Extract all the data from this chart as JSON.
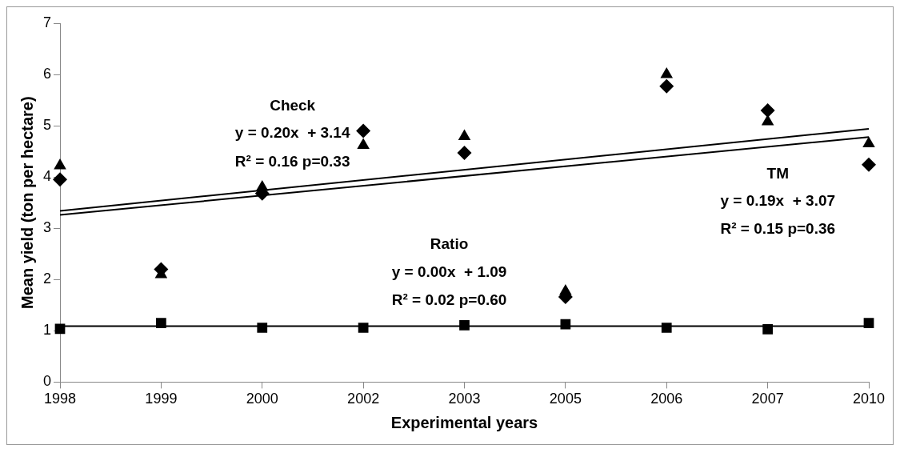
{
  "chart_data": {
    "type": "scatter",
    "xlabel": "Experimental years",
    "ylabel": "Mean yield (ton per hectare)",
    "categories": [
      "1998",
      "1999",
      "2000",
      "2002",
      "2003",
      "2005",
      "2006",
      "2007",
      "2010"
    ],
    "series": [
      {
        "type": "scatter",
        "marker": "diamond",
        "color": "#000000",
        "values": [
          3.95,
          2.2,
          3.68,
          4.9,
          4.47,
          1.66,
          5.77,
          5.3,
          4.24
        ]
      },
      {
        "type": "scatter",
        "marker": "triangle",
        "color": "#000000",
        "values": [
          4.22,
          2.1,
          3.8,
          4.62,
          4.79,
          1.77,
          6.0,
          5.08,
          4.65
        ]
      },
      {
        "type": "scatter",
        "marker": "square",
        "color": "#000000",
        "values": [
          1.04,
          1.15,
          1.06,
          1.06,
          1.11,
          1.13,
          1.06,
          1.03,
          1.15
        ]
      },
      {
        "type": "line",
        "marker": "none",
        "color": "#000000",
        "values": [
          3.34,
          null,
          null,
          null,
          null,
          null,
          null,
          null,
          4.94
        ]
      },
      {
        "type": "line",
        "marker": "none",
        "color": "#000000",
        "values": [
          3.26,
          null,
          null,
          null,
          null,
          null,
          null,
          null,
          4.78
        ]
      },
      {
        "type": "line",
        "marker": "none",
        "color": "#000000",
        "values": [
          1.09,
          null,
          null,
          null,
          null,
          null,
          null,
          null,
          1.09
        ]
      }
    ],
    "ylim": [
      0,
      7
    ],
    "yticks": [
      0,
      1,
      2,
      3,
      4,
      5,
      6,
      7
    ],
    "grid": false,
    "legend": false,
    "annotations": [
      "Check",
      "y = 0.20x  + 3.14",
      "R² = 0.16 p=0.33",
      "TM",
      "y = 0.19x  + 3.07",
      "R² = 0.15 p=0.36",
      "Ratio",
      "y = 0.00x  + 1.09",
      "R² = 0.02 p=0.60"
    ]
  }
}
